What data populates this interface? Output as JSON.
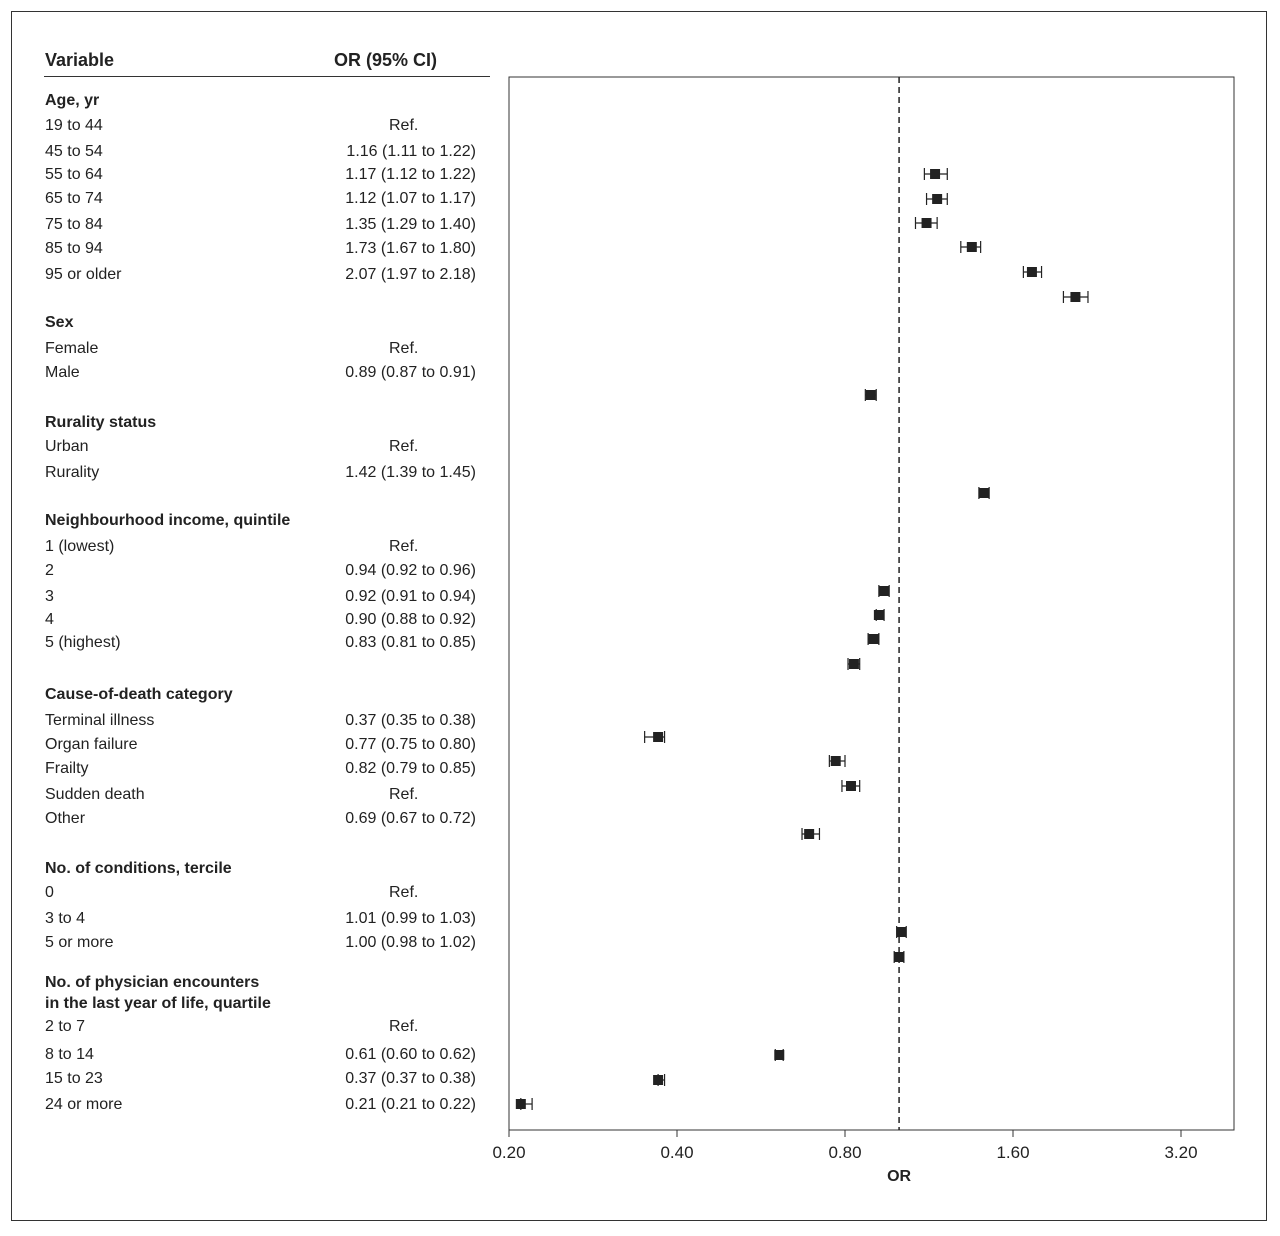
{
  "table": {
    "header_variable": "Variable",
    "header_or": "OR (95% CI)"
  },
  "rows": [
    {
      "label": "Age, yr",
      "group": true
    },
    {
      "label": "19 to 44",
      "or_text": "Ref."
    },
    {
      "label": "45 to 54",
      "or_text": "1.16 (1.11 to 1.22)"
    },
    {
      "label": "55 to 64",
      "or_text": "1.17 (1.12 to 1.22)"
    },
    {
      "label": "65 to 74",
      "or_text": "1.12 (1.07 to 1.17)"
    },
    {
      "label": "75 to 84",
      "or_text": "1.35 (1.29 to 1.40)"
    },
    {
      "label": "85 to 94",
      "or_text": "1.73 (1.67 to 1.80)"
    },
    {
      "label": "95 or older",
      "or_text": "2.07 (1.97 to 2.18)"
    },
    {
      "label": "Sex",
      "group": true
    },
    {
      "label": "Female",
      "or_text": "Ref."
    },
    {
      "label": "Male",
      "or_text": "0.89 (0.87 to 0.91)"
    },
    {
      "label": "Rurality status",
      "group": true
    },
    {
      "label": "Urban",
      "or_text": "Ref."
    },
    {
      "label": "Rurality",
      "or_text": "1.42 (1.39 to 1.45)"
    },
    {
      "label": "Neighbourhood income, quintile",
      "group": true
    },
    {
      "label": "1 (lowest)",
      "or_text": "Ref."
    },
    {
      "label": "2",
      "or_text": "0.94 (0.92 to 0.96)"
    },
    {
      "label": "3",
      "or_text": "0.92 (0.91 to 0.94)"
    },
    {
      "label": "4",
      "or_text": "0.90 (0.88 to 0.92)"
    },
    {
      "label": "5 (highest)",
      "or_text": "0.83 (0.81 to 0.85)"
    },
    {
      "label": "Cause-of-death category",
      "group": true
    },
    {
      "label": "Terminal illness",
      "or_text": "0.37 (0.35 to 0.38)"
    },
    {
      "label": "Organ failure",
      "or_text": "0.77 (0.75 to 0.80)"
    },
    {
      "label": "Frailty",
      "or_text": "0.82 (0.79 to 0.85)"
    },
    {
      "label": "Sudden death",
      "or_text": "Ref."
    },
    {
      "label": "Other",
      "or_text": "0.69 (0.67 to 0.72)"
    },
    {
      "label": "No. of conditions, tercile",
      "group": true
    },
    {
      "label": "0",
      "or_text": "Ref."
    },
    {
      "label": "3 to 4",
      "or_text": "1.01 (0.99 to 1.03)"
    },
    {
      "label": "5 or more",
      "or_text": "1.00 (0.98 to 1.02)"
    },
    {
      "label": "No. of physician encounters in the last year of life, quartile",
      "group": true,
      "lines": [
        "No. of physician encounters",
        "in the last year of life, quartile"
      ]
    },
    {
      "label": "2 to 7",
      "or_text": "Ref."
    },
    {
      "label": "8 to 14",
      "or_text": "0.61 (0.60 to 0.62)"
    },
    {
      "label": "15 to 23",
      "or_text": "0.37 (0.37 to 0.38)"
    },
    {
      "label": "24 or more",
      "or_text": "0.21 (0.21 to 0.22)"
    }
  ],
  "chart_data": {
    "type": "forest",
    "xlabel": "OR",
    "x_scale": "log",
    "xlim": [
      0.2,
      4.0
    ],
    "xticks": [
      0.2,
      0.4,
      0.8,
      1.6,
      3.2
    ],
    "xtick_labels": [
      "0.20",
      "0.40",
      "0.80",
      "1.60",
      "3.20"
    ],
    "reference_line": 1.0,
    "points": [
      {
        "category": "45 to 54",
        "or": 1.16,
        "lo": 1.11,
        "hi": 1.22
      },
      {
        "category": "55 to 64",
        "or": 1.17,
        "lo": 1.12,
        "hi": 1.22
      },
      {
        "category": "65 to 74",
        "or": 1.12,
        "lo": 1.07,
        "hi": 1.17
      },
      {
        "category": "75 to 84",
        "or": 1.35,
        "lo": 1.29,
        "hi": 1.4
      },
      {
        "category": "85 to 94",
        "or": 1.73,
        "lo": 1.67,
        "hi": 1.8
      },
      {
        "category": "95 or older",
        "or": 2.07,
        "lo": 1.97,
        "hi": 2.18
      },
      {
        "category": "Male",
        "or": 0.89,
        "lo": 0.87,
        "hi": 0.91
      },
      {
        "category": "Rurality",
        "or": 1.42,
        "lo": 1.39,
        "hi": 1.45
      },
      {
        "category": "2",
        "or": 0.94,
        "lo": 0.92,
        "hi": 0.96
      },
      {
        "category": "3",
        "or": 0.92,
        "lo": 0.91,
        "hi": 0.94
      },
      {
        "category": "4",
        "or": 0.9,
        "lo": 0.88,
        "hi": 0.92
      },
      {
        "category": "5 (highest)",
        "or": 0.83,
        "lo": 0.81,
        "hi": 0.85
      },
      {
        "category": "Terminal illness",
        "or": 0.37,
        "lo": 0.35,
        "hi": 0.38
      },
      {
        "category": "Organ failure",
        "or": 0.77,
        "lo": 0.75,
        "hi": 0.8
      },
      {
        "category": "Frailty",
        "or": 0.82,
        "lo": 0.79,
        "hi": 0.85
      },
      {
        "category": "Other",
        "or": 0.69,
        "lo": 0.67,
        "hi": 0.72
      },
      {
        "category": "3 to 4",
        "or": 1.01,
        "lo": 0.99,
        "hi": 1.03
      },
      {
        "category": "5 or more",
        "or": 1.0,
        "lo": 0.98,
        "hi": 1.02
      },
      {
        "category": "8 to 14",
        "or": 0.61,
        "lo": 0.6,
        "hi": 0.62
      },
      {
        "category": "15 to 23",
        "or": 0.37,
        "lo": 0.37,
        "hi": 0.38
      },
      {
        "category": "24 or more",
        "or": 0.21,
        "lo": 0.21,
        "hi": 0.22
      }
    ]
  }
}
